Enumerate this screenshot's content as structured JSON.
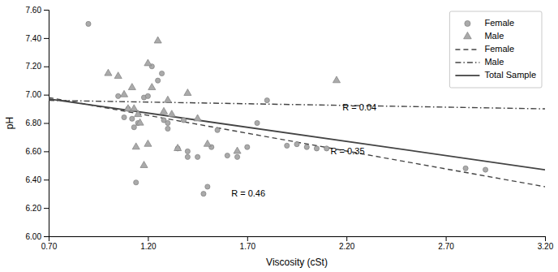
{
  "chart_data": {
    "type": "scatter",
    "xlabel": "Viscosity (cSt)",
    "ylabel": "pH",
    "xlim": [
      0.7,
      3.2
    ],
    "ylim": [
      6.0,
      7.6
    ],
    "xticks": [
      {
        "value": 0.7,
        "label": "0.70"
      },
      {
        "value": 1.2,
        "label": "1.20"
      },
      {
        "value": 1.7,
        "label": "1.70"
      },
      {
        "value": 2.2,
        "label": "2.20"
      },
      {
        "value": 2.7,
        "label": "2.70"
      },
      {
        "value": 3.2,
        "label": "3.20"
      }
    ],
    "yticks": [
      {
        "value": 6.0,
        "label": "6.00"
      },
      {
        "value": 6.2,
        "label": "6.20"
      },
      {
        "value": 6.4,
        "label": "6.40"
      },
      {
        "value": 6.6,
        "label": "6.60"
      },
      {
        "value": 6.8,
        "label": "6.80"
      },
      {
        "value": 7.0,
        "label": "7.00"
      },
      {
        "value": 7.2,
        "label": "7.20"
      },
      {
        "value": 7.4,
        "label": "7.40"
      },
      {
        "value": 7.6,
        "label": "7.60"
      }
    ],
    "grid": false,
    "legend": "upper right",
    "series": [
      {
        "name": "Female",
        "type": "scatter",
        "marker": "circle",
        "color": "#aaaaaa",
        "x": [
          0.9,
          1.05,
          1.08,
          1.1,
          1.12,
          1.13,
          1.14,
          1.15,
          1.18,
          1.2,
          1.22,
          1.25,
          1.27,
          1.28,
          1.3,
          1.3,
          1.35,
          1.38,
          1.4,
          1.4,
          1.45,
          1.48,
          1.5,
          1.52,
          1.55,
          1.6,
          1.65,
          1.7,
          1.75,
          1.8,
          1.9,
          1.95,
          2.0,
          2.05,
          2.1,
          2.8,
          2.9
        ],
        "values": [
          7.5,
          6.99,
          6.84,
          6.9,
          6.83,
          6.77,
          6.38,
          6.8,
          6.98,
          6.99,
          7.2,
          7.1,
          7.15,
          6.82,
          6.8,
          6.76,
          6.62,
          6.82,
          6.6,
          6.56,
          6.56,
          6.3,
          6.35,
          6.63,
          6.75,
          6.57,
          6.56,
          6.63,
          6.8,
          6.96,
          6.64,
          6.65,
          6.63,
          6.62,
          6.62,
          6.48,
          6.47
        ]
      },
      {
        "name": "Male",
        "type": "scatter",
        "marker": "triangle",
        "color": "#aaaaaa",
        "x": [
          1.0,
          1.05,
          1.08,
          1.1,
          1.12,
          1.13,
          1.14,
          1.15,
          1.16,
          1.18,
          1.2,
          1.2,
          1.22,
          1.25,
          1.28,
          1.3,
          1.32,
          1.35,
          1.4,
          1.45,
          1.5,
          1.65,
          2.15
        ],
        "values": [
          7.15,
          7.13,
          7.0,
          6.9,
          7.05,
          6.9,
          6.63,
          6.86,
          6.8,
          6.5,
          6.65,
          7.22,
          7.05,
          7.38,
          6.88,
          6.96,
          6.86,
          6.62,
          7.01,
          6.83,
          6.65,
          6.6,
          7.1
        ]
      },
      {
        "name": "Female",
        "type": "line",
        "line_style": "dashed",
        "color": "#444444",
        "x": [
          0.7,
          3.2
        ],
        "values": [
          6.98,
          6.35
        ]
      },
      {
        "name": "Male",
        "type": "line",
        "line_style": "dashdot",
        "color": "#444444",
        "x": [
          0.7,
          3.2
        ],
        "values": [
          6.96,
          6.9
        ]
      },
      {
        "name": "Total Sample",
        "type": "line",
        "line_style": "solid",
        "color": "#444444",
        "x": [
          0.7,
          3.2
        ],
        "values": [
          6.97,
          6.47
        ]
      }
    ],
    "annotations": [
      {
        "text": "R = 0.46",
        "x": 1.62,
        "y": 6.295
      },
      {
        "text": "R = 0.35",
        "x": 2.12,
        "y": 6.595
      },
      {
        "text": "R = 0.04",
        "x": 2.18,
        "y": 6.908
      }
    ]
  }
}
